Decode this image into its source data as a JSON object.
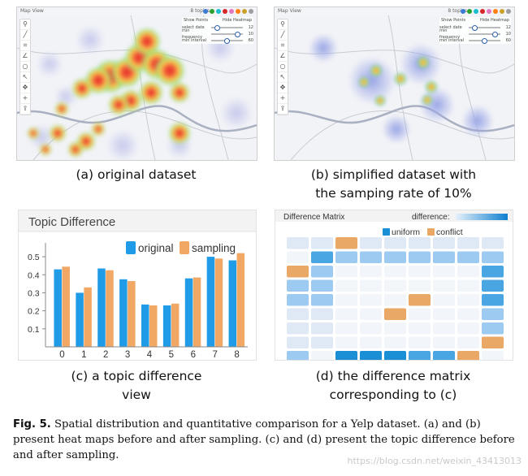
{
  "panel_a": {
    "header": "Map View",
    "topics": "8 topics",
    "controls": {
      "show_points": "Show Points",
      "hide_heatmap": "Hide Heatmap",
      "select_date": "select date",
      "select_date_val": "12",
      "min_frequency": "min frequency",
      "min_frequency_val": "10",
      "min_interval": "min interval",
      "min_interval_val": "60"
    },
    "caption": "(a) original dataset"
  },
  "panel_b": {
    "header": "Map View",
    "topics": "8 topics",
    "controls": {
      "show_points": "Show Points",
      "hide_heatmap": "Hide Heatmap",
      "select_date": "select date",
      "select_date_val": "12",
      "min_frequency": "min frequency",
      "min_frequency_val": "10",
      "min_interval": "min interval",
      "min_interval_val": "60"
    },
    "caption_line1": "(b) simplified dataset with",
    "caption_line2": "the samping rate of 10%"
  },
  "topic_colors": [
    "#3a7bd5",
    "#2ca02c",
    "#17becf",
    "#d62728",
    "#e377c2",
    "#ff7f0e",
    "#c9a227",
    "#9e9e9e"
  ],
  "toolbar_icons": [
    "pin-icon",
    "line-icon",
    "crop-icon",
    "angle-icon",
    "circle-icon",
    "pointer-icon",
    "move-icon",
    "plus-icon",
    "upload-icon"
  ],
  "panel_c": {
    "caption_line1": "(c) a topic difference",
    "caption_line2": "view"
  },
  "panel_d": {
    "title": "Difference Matrix",
    "difference_label": "difference:",
    "legend_uniform": "uniform",
    "legend_conflict": "conflict",
    "caption_line1": "(d) the difference matrix",
    "caption_line2": "corresponding to (c)",
    "colors": {
      "uniform": "#1a8fd6",
      "conflict": "#e9a866"
    },
    "matrix": [
      [
        "l",
        "l",
        "o",
        "l",
        "l",
        "l",
        "l",
        "l",
        "l"
      ],
      [
        "w",
        "b2",
        "b1",
        "b1",
        "b1",
        "b1",
        "b1",
        "b1",
        "b1"
      ],
      [
        "o",
        "b1",
        "w",
        "w",
        "w",
        "w",
        "w",
        "w",
        "b2"
      ],
      [
        "b1",
        "b1",
        "w",
        "w",
        "w",
        "w",
        "w",
        "w",
        "b2"
      ],
      [
        "b1",
        "b1",
        "w",
        "w",
        "w",
        "o",
        "w",
        "w",
        "b2"
      ],
      [
        "l",
        "l",
        "w",
        "w",
        "o",
        "w",
        "w",
        "w",
        "b1"
      ],
      [
        "l",
        "l",
        "w",
        "w",
        "w",
        "w",
        "w",
        "w",
        "b1"
      ],
      [
        "l",
        "l",
        "w",
        "w",
        "w",
        "w",
        "w",
        "w",
        "o"
      ],
      [
        "b1",
        "w",
        "b3",
        "b3",
        "b3",
        "b2",
        "b2",
        "o",
        "w"
      ]
    ]
  },
  "chart_data": {
    "type": "bar",
    "title": "Topic Difference",
    "categories": [
      "0",
      "1",
      "2",
      "3",
      "4",
      "5",
      "6",
      "7",
      "8"
    ],
    "series": [
      {
        "name": "original",
        "values": [
          0.43,
          0.3,
          0.435,
          0.375,
          0.235,
          0.23,
          0.38,
          0.5,
          0.48
        ],
        "color": "#1f9be8"
      },
      {
        "name": "sampling",
        "values": [
          0.445,
          0.33,
          0.425,
          0.365,
          0.23,
          0.24,
          0.385,
          0.49,
          0.52
        ],
        "color": "#f0a864"
      }
    ],
    "yticks": [
      "0.1",
      "0.2",
      "0.3",
      "0.4",
      "0.5"
    ],
    "ylim": [
      0,
      0.55
    ],
    "legend_position": "top-right",
    "grid": false
  },
  "figure_caption": {
    "label": "Fig. 5.",
    "text": "Spatial distribution and quantitative comparison for a Yelp dataset. (a) and (b) present heat maps before and after sampling. (c) and (d) present the topic difference before and after sampling."
  },
  "watermark": "https://blog.csdn.net/weixin_43413013"
}
